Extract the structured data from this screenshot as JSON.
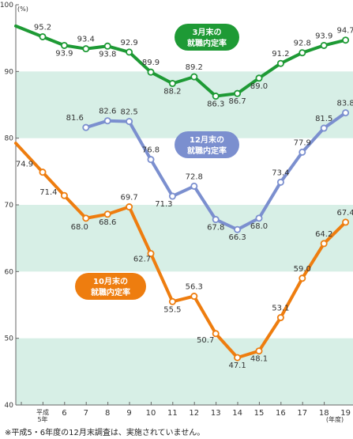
{
  "chart_data": {
    "type": "line",
    "y_unit": "(%)",
    "x_unit": "(年度)",
    "ylim": [
      40,
      100
    ],
    "yticks": [
      40,
      50,
      60,
      70,
      80,
      90,
      100
    ],
    "categories": [
      "平成5年",
      "6",
      "7",
      "8",
      "9",
      "10",
      "11",
      "12",
      "13",
      "14",
      "15",
      "16",
      "17",
      "18",
      "19"
    ],
    "series": [
      {
        "name": "3月末の就職内定率",
        "color": "#1e9a35",
        "values": [
          95.2,
          93.9,
          93.4,
          93.8,
          92.9,
          89.9,
          88.2,
          89.2,
          86.3,
          86.7,
          89.0,
          91.2,
          92.8,
          93.9,
          94.7
        ]
      },
      {
        "name": "12月末の就職内定率",
        "color": "#7b8fcf",
        "values": [
          null,
          null,
          81.6,
          82.6,
          82.5,
          76.8,
          71.3,
          72.8,
          67.8,
          66.3,
          68.0,
          73.4,
          77.9,
          81.5,
          83.8
        ]
      },
      {
        "name": "10月末の就職内定率",
        "color": "#ee7d0f",
        "values": [
          74.9,
          71.4,
          68.0,
          68.6,
          69.7,
          62.7,
          55.5,
          56.3,
          50.7,
          47.1,
          48.1,
          53.1,
          59.0,
          64.2,
          67.4
        ]
      }
    ],
    "legend": [
      {
        "line1": "3月末の",
        "line2": "就職内定率"
      },
      {
        "line1": "12月末の",
        "line2": "就職内定率"
      },
      {
        "line1": "10月末の",
        "line2": "就職内定率"
      }
    ],
    "grid": "alternating horizontal bands"
  },
  "footnote": "※平成5・6年度の12月末調査は、実施されていません。"
}
